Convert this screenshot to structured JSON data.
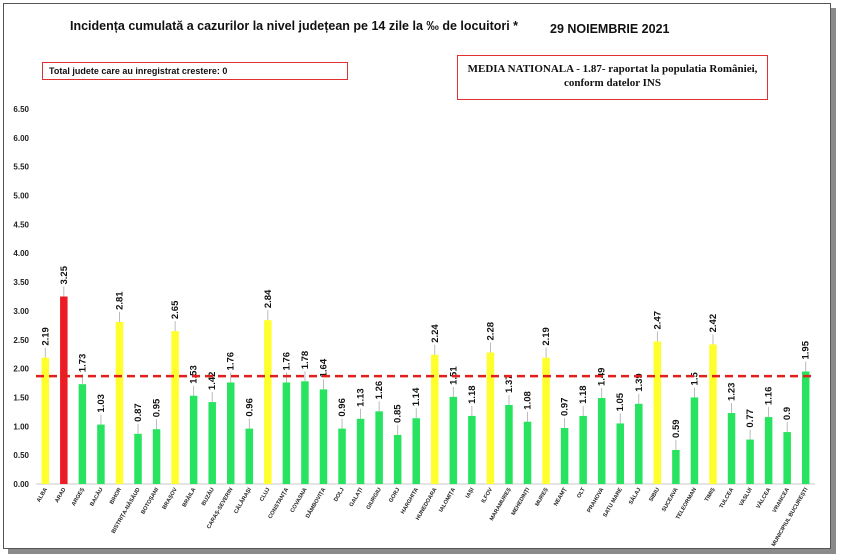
{
  "title": "Incidența cumulată a cazurilor la nivel județean pe 14 zile la ‰ de locuitori *",
  "date": "29 NOIEMBRIE 2021",
  "box_left": "Total judete care au inregistrat crestere: 0",
  "box_right_line1": "MEDIA NATIONALA - 1.87-  raportat la populatia României,",
  "box_right_line2": "conform datelor INS",
  "colors": {
    "green": "#27e35f",
    "yellow": "#ffff2e",
    "red": "#ec1c24",
    "reference": "#e0201c"
  },
  "chart_data": {
    "type": "bar",
    "title": "Incidența cumulată a cazurilor la nivel județean pe 14 zile la ‰ de locuitori *",
    "ylim": [
      0,
      6.5
    ],
    "yticks": [
      "0.00",
      "0.50",
      "1.00",
      "1.50",
      "2.00",
      "2.50",
      "3.00",
      "3.50",
      "4.00",
      "4.50",
      "5.00",
      "5.50",
      "6.00",
      "6.50"
    ],
    "grid": false,
    "reference_line": {
      "value": 1.87,
      "style": "dashed",
      "color": "#e0201c"
    },
    "categories": [
      "ALBA",
      "ARAD",
      "ARGEȘ",
      "BACĂU",
      "BIHOR",
      "BISTRIȚA-NĂSĂUD",
      "BOTOȘANI",
      "BRAȘOV",
      "BRĂILA",
      "BUZĂU",
      "CARAȘ-SEVERIN",
      "CĂLĂRAȘI",
      "CLUJ",
      "CONSTANȚA",
      "COVASNA",
      "DÂMBOVIȚA",
      "DOLJ",
      "GALAȚI",
      "GIURGIU",
      "GORJ",
      "HARGHITA",
      "HUNEDOARA",
      "IALOMIȚA",
      "IAȘI",
      "ILFOV",
      "MARAMUREȘ",
      "MEHEDINȚI",
      "MUREȘ",
      "NEAMȚ",
      "OLT",
      "PRAHOVA",
      "SATU MARE",
      "SĂLAJ",
      "SIBIU",
      "SUCEAVA",
      "TELEORMAN",
      "TIMIȘ",
      "TULCEA",
      "VASLUI",
      "VÂLCEA",
      "VRANCEA",
      "MUNICIPIUL BUCUREȘTI"
    ],
    "values": [
      2.19,
      3.25,
      1.73,
      1.03,
      2.81,
      0.87,
      0.95,
      2.65,
      1.53,
      1.42,
      1.76,
      0.96,
      2.84,
      1.76,
      1.78,
      1.64,
      0.96,
      1.13,
      1.26,
      0.85,
      1.14,
      2.24,
      1.51,
      1.18,
      2.28,
      1.37,
      1.08,
      2.19,
      0.97,
      1.18,
      1.49,
      1.05,
      1.39,
      2.47,
      0.59,
      1.5,
      2.42,
      1.23,
      0.77,
      1.16,
      0.9,
      1.95
    ],
    "value_labels": [
      "2.19",
      "3.25",
      "1.73",
      "1.03",
      "2.81",
      "0.87",
      "0.95",
      "2.65",
      "1.53",
      "1.42",
      "1.76",
      "0.96",
      "2.84",
      "1.76",
      "1.78",
      "1.64",
      "0.96",
      "1.13",
      "1.26",
      "0.85",
      "1.14",
      "2.24",
      "1.51",
      "1.18",
      "2.28",
      "1.37",
      "1.08",
      "2.19",
      "0.97",
      "1.18",
      "1.49",
      "1.05",
      "1.39",
      "2.47",
      "0.59",
      "1.5",
      "2.42",
      "1.23",
      "0.77",
      "1.16",
      "0.9",
      "1.95"
    ],
    "bar_colors": [
      "yellow",
      "red",
      "green",
      "green",
      "yellow",
      "green",
      "green",
      "yellow",
      "green",
      "green",
      "green",
      "green",
      "yellow",
      "green",
      "green",
      "green",
      "green",
      "green",
      "green",
      "green",
      "green",
      "yellow",
      "green",
      "green",
      "yellow",
      "green",
      "green",
      "yellow",
      "green",
      "green",
      "green",
      "green",
      "green",
      "yellow",
      "green",
      "green",
      "yellow",
      "green",
      "green",
      "green",
      "green",
      "green"
    ]
  }
}
